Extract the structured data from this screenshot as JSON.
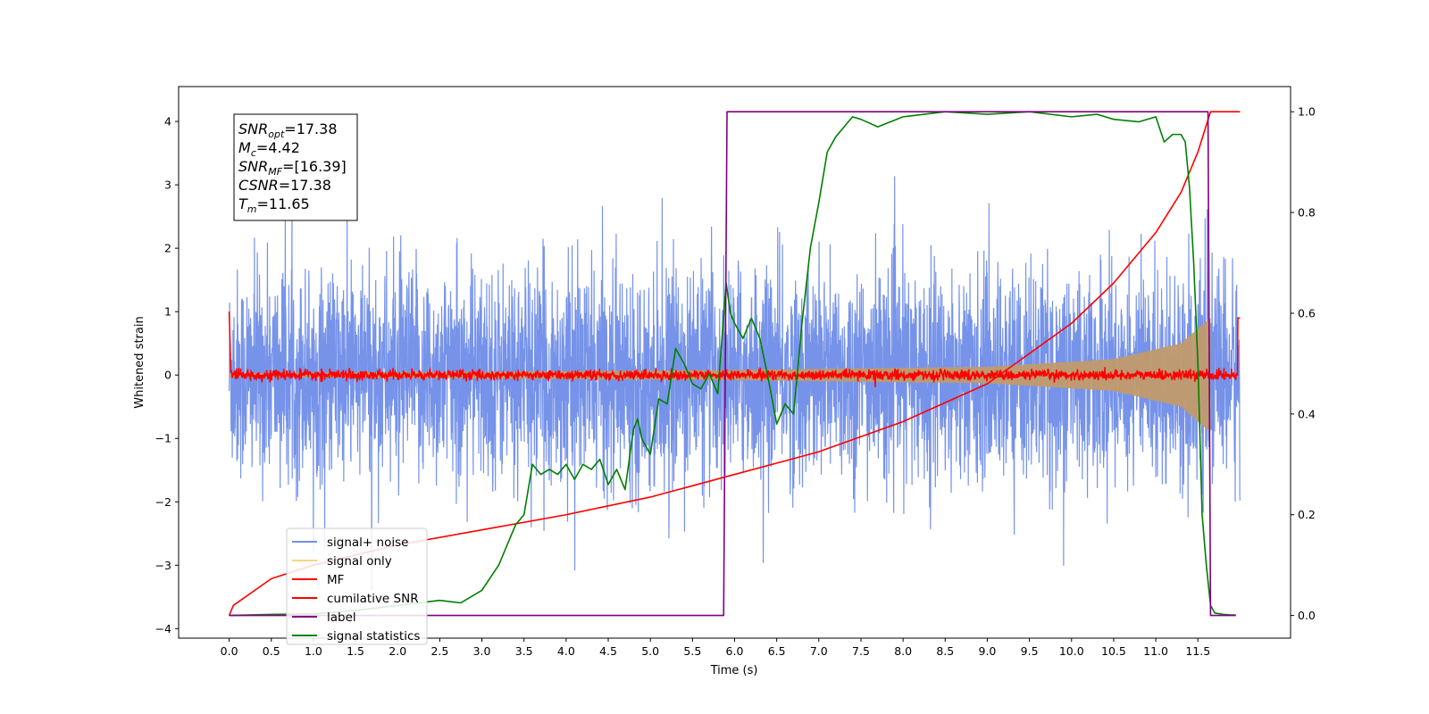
{
  "chart_data": {
    "type": "line",
    "xlabel": "Time (s)",
    "ylabel": "Whitened strain",
    "xlim": [
      -0.6,
      12.6
    ],
    "ylim": [
      -4.15,
      4.55
    ],
    "y2lim": [
      -0.045,
      1.05
    ],
    "grid": false,
    "x_ticks": [
      0.0,
      0.5,
      1.0,
      1.5,
      2.0,
      2.5,
      3.0,
      3.5,
      4.0,
      4.5,
      5.0,
      5.5,
      6.0,
      6.5,
      7.0,
      7.5,
      8.0,
      8.5,
      9.0,
      9.5,
      10.0,
      10.5,
      11.0,
      11.5
    ],
    "x_tick_labels": [
      "0.0",
      "0.5",
      "1.0",
      "1.5",
      "2.0",
      "2.5",
      "3.0",
      "3.5",
      "4.0",
      "4.5",
      "5.0",
      "5.5",
      "6.0",
      "6.5",
      "7.0",
      "7.5",
      "8.0",
      "8.5",
      "9.0",
      "9.5",
      "10.0",
      "10.5",
      "11.0",
      "11.5"
    ],
    "y_ticks": [
      4,
      3,
      2,
      1,
      0,
      -1,
      -2,
      -3,
      -4
    ],
    "y_tick_labels": [
      "4",
      "3",
      "2",
      "1",
      "0",
      "−1",
      "−2",
      "−3",
      "−4"
    ],
    "y2_ticks": [
      1.0,
      0.8,
      0.6,
      0.4,
      0.2,
      0.0
    ],
    "y2_tick_labels": [
      "1.0",
      "0.8",
      "0.6",
      "0.4",
      "0.2",
      "0.0"
    ],
    "legend_placement": "lower-left",
    "annotation": {
      "lines": [
        {
          "base": "SNR",
          "sub": "opt",
          "value": "=17.38"
        },
        {
          "base": "M",
          "sub": "c",
          "value": "=4.42"
        },
        {
          "base": "SNR",
          "sub": "MF",
          "value": "=[16.39]"
        },
        {
          "base": "CSNR",
          "sub": "",
          "value": "=17.38"
        },
        {
          "base": "T",
          "sub": "m",
          "value": "=11.65"
        }
      ]
    },
    "series": [
      {
        "name": "signal+ noise",
        "color": "#4169e1",
        "axis": "left",
        "description_kind": "noise",
        "amplitude_rms": 0.82,
        "x_range": [
          0.0,
          12.0
        ]
      },
      {
        "name": "signal only",
        "color": "#ffa500",
        "axis": "left",
        "envelope": {
          "x": [
            0.0,
            6.0,
            9.0,
            10.5,
            11.3,
            11.6,
            11.65
          ],
          "half_width": [
            0.03,
            0.08,
            0.13,
            0.25,
            0.5,
            0.85,
            0.9
          ]
        }
      },
      {
        "name": "MF",
        "color": "#ff0000",
        "axis": "left",
        "description_kind": "noise",
        "amplitude_rms": 0.04,
        "x_range": [
          0.0,
          12.0
        ]
      },
      {
        "name": "cumilative SNR",
        "color": "#ff0000",
        "axis": "right",
        "x": [
          0.0,
          0.05,
          0.5,
          1.0,
          2.0,
          3.0,
          4.0,
          5.0,
          6.0,
          7.0,
          8.0,
          9.0,
          10.0,
          10.5,
          11.0,
          11.3,
          11.5,
          11.65,
          12.0
        ],
        "values": [
          0.0,
          0.02,
          0.073,
          0.1,
          0.14,
          0.17,
          0.2,
          0.235,
          0.28,
          0.325,
          0.385,
          0.46,
          0.58,
          0.66,
          0.76,
          0.84,
          0.92,
          1.0,
          1.0
        ]
      },
      {
        "name": "label",
        "color": "#800080",
        "axis": "right",
        "x": [
          0.0,
          5.87,
          5.91,
          11.62,
          11.65,
          11.95
        ],
        "values": [
          0.0,
          0.0,
          1.0,
          1.0,
          0.0,
          0.0
        ]
      },
      {
        "name": "signal statistics",
        "color": "#008000",
        "axis": "right",
        "x": [
          0.0,
          0.5,
          1.0,
          1.5,
          2.0,
          2.5,
          2.75,
          3.0,
          3.2,
          3.4,
          3.5,
          3.6,
          3.7,
          3.8,
          3.9,
          4.0,
          4.1,
          4.2,
          4.3,
          4.4,
          4.5,
          4.6,
          4.7,
          4.8,
          4.85,
          4.9,
          5.0,
          5.1,
          5.2,
          5.3,
          5.4,
          5.5,
          5.6,
          5.7,
          5.8,
          5.9,
          5.95,
          6.0,
          6.1,
          6.2,
          6.3,
          6.4,
          6.5,
          6.6,
          6.7,
          6.8,
          6.9,
          7.0,
          7.1,
          7.2,
          7.3,
          7.4,
          7.5,
          7.7,
          8.0,
          8.5,
          9.0,
          9.5,
          10.0,
          10.3,
          10.5,
          10.8,
          11.0,
          11.1,
          11.2,
          11.3,
          11.35,
          11.4,
          11.45,
          11.5,
          11.55,
          11.6,
          11.65,
          11.7,
          11.8,
          11.9,
          11.95
        ],
        "values": [
          0.0,
          0.002,
          0.003,
          0.01,
          0.02,
          0.03,
          0.025,
          0.05,
          0.1,
          0.18,
          0.2,
          0.3,
          0.28,
          0.29,
          0.28,
          0.3,
          0.27,
          0.3,
          0.29,
          0.31,
          0.26,
          0.29,
          0.25,
          0.37,
          0.39,
          0.35,
          0.32,
          0.43,
          0.42,
          0.53,
          0.5,
          0.46,
          0.45,
          0.48,
          0.44,
          0.66,
          0.6,
          0.58,
          0.55,
          0.59,
          0.55,
          0.47,
          0.38,
          0.42,
          0.4,
          0.58,
          0.73,
          0.82,
          0.92,
          0.95,
          0.97,
          0.99,
          0.985,
          0.97,
          0.99,
          1.0,
          0.995,
          1.0,
          0.99,
          0.995,
          0.985,
          0.98,
          0.99,
          0.94,
          0.955,
          0.955,
          0.94,
          0.85,
          0.7,
          0.5,
          0.2,
          0.1,
          0.02,
          0.005,
          0.002,
          0.001,
          0.001
        ]
      }
    ]
  }
}
